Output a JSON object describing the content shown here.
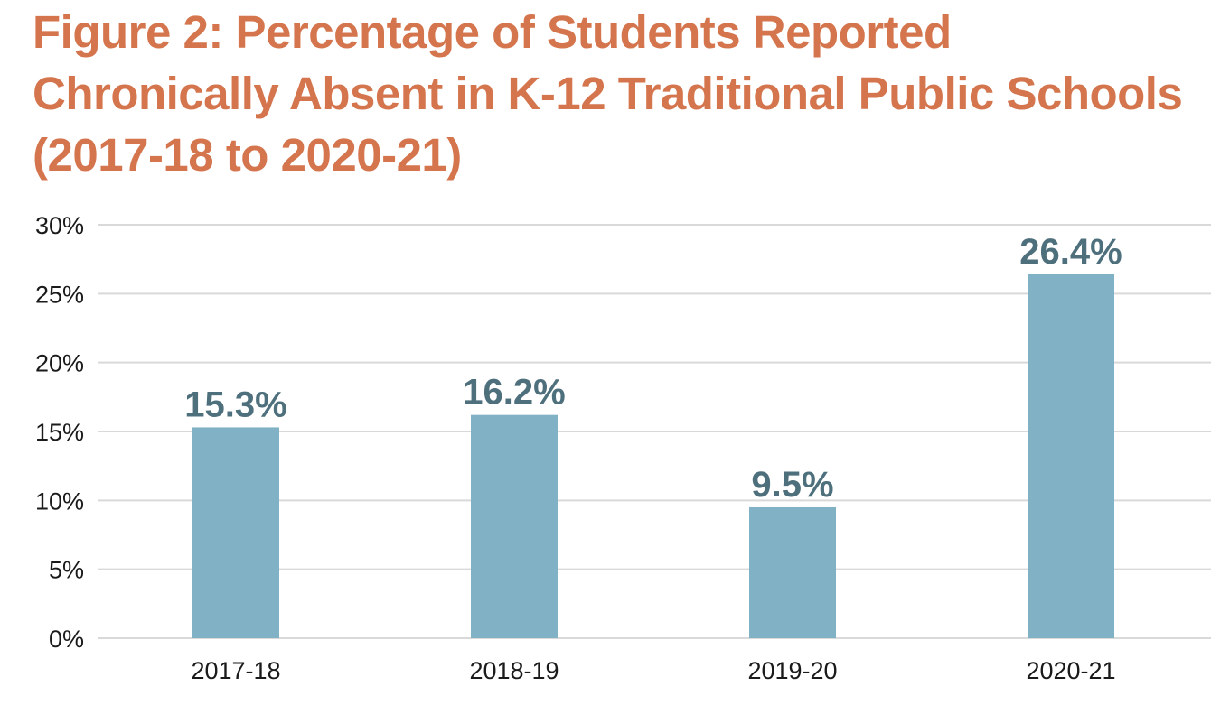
{
  "chart_data": {
    "type": "bar",
    "title": "Figure 2: Percentage of Students Reported Chronically Absent in K-12 Traditional Public Schools (2017-18 to 2020-21)",
    "xlabel": "",
    "ylabel": "",
    "categories": [
      "2017-18",
      "2018-19",
      "2019-20",
      "2020-21"
    ],
    "values": [
      15.3,
      16.2,
      9.5,
      26.4
    ],
    "data_labels": [
      "15.3%",
      "16.2%",
      "9.5%",
      "26.4%"
    ],
    "ylim": [
      0,
      30
    ],
    "yticks": [
      0,
      5,
      10,
      15,
      20,
      25,
      30
    ],
    "ytick_labels": [
      "0%",
      "5%",
      "10%",
      "15%",
      "20%",
      "25%",
      "30%"
    ],
    "grid": true,
    "legend": "none",
    "colors": {
      "bar": "#80b1c4",
      "title": "#d4754e",
      "data_label": "#4e6f7c",
      "grid": "#d9d9d9"
    }
  }
}
